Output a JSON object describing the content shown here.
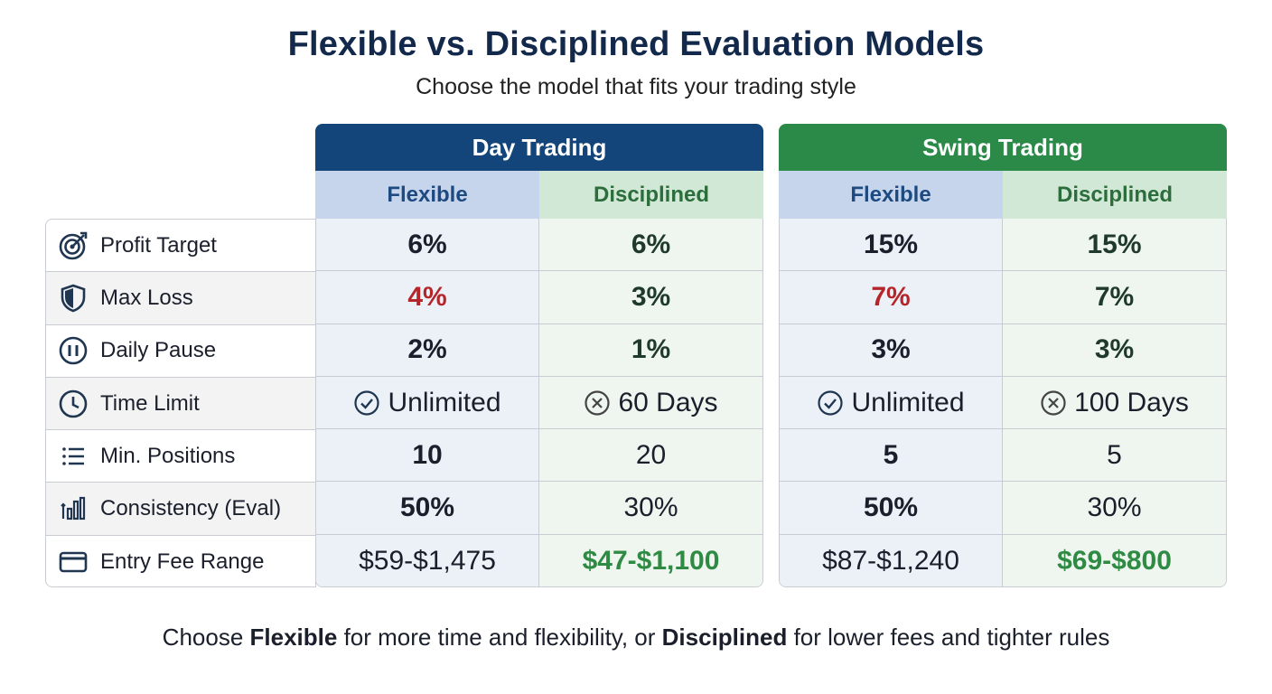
{
  "title": "Flexible vs. Disciplined Evaluation Models",
  "subtitle": "Choose the model that fits your trading style",
  "groups": {
    "day": {
      "name": "Day Trading",
      "flexible": "Flexible",
      "disciplined": "Disciplined"
    },
    "swing": {
      "name": "Swing Trading",
      "flexible": "Flexible",
      "disciplined": "Disciplined"
    }
  },
  "rows": [
    {
      "label": "Profit Target",
      "icon": "target-icon",
      "day_flex": "6%",
      "day_disc": "6%",
      "swing_flex": "15%",
      "swing_disc": "15%"
    },
    {
      "label": "Max Loss",
      "icon": "shield-icon",
      "day_flex": "4%",
      "day_disc": "3%",
      "swing_flex": "7%",
      "swing_disc": "7%"
    },
    {
      "label": "Daily Pause",
      "icon": "pause-icon",
      "day_flex": "2%",
      "day_disc": "1%",
      "swing_flex": "3%",
      "swing_disc": "3%"
    },
    {
      "label": "Time Limit",
      "icon": "clock-icon",
      "day_flex": "Unlimited",
      "day_disc": "60 Days",
      "swing_flex": "Unlimited",
      "swing_disc": "100 Days"
    },
    {
      "label": "Min. Positions",
      "icon": "list-icon",
      "day_flex": "10",
      "day_disc": "20",
      "swing_flex": "5",
      "swing_disc": "5"
    },
    {
      "label": "Consistency (Eval)",
      "icon": "bar-chart-icon",
      "day_flex": "50%",
      "day_disc": "30%",
      "swing_flex": "50%",
      "swing_disc": "30%"
    },
    {
      "label": "Entry Fee Range",
      "icon": "credit-card-icon",
      "day_flex": "$59-$1,475",
      "day_disc": "$47-$1,100",
      "swing_flex": "$87-$1,240",
      "swing_disc": "$69-$800"
    }
  ],
  "footer": {
    "part1": "Choose ",
    "flexible": "Flexible",
    "part2": " for more time and flexibility, or ",
    "disciplined": "Disciplined",
    "part3": " for lower fees and tighter rules"
  },
  "colors": {
    "day_header": "#13457a",
    "swing_header": "#2b8a48",
    "loss_red": "#b5262b",
    "fee_green": "#2f8a44"
  }
}
